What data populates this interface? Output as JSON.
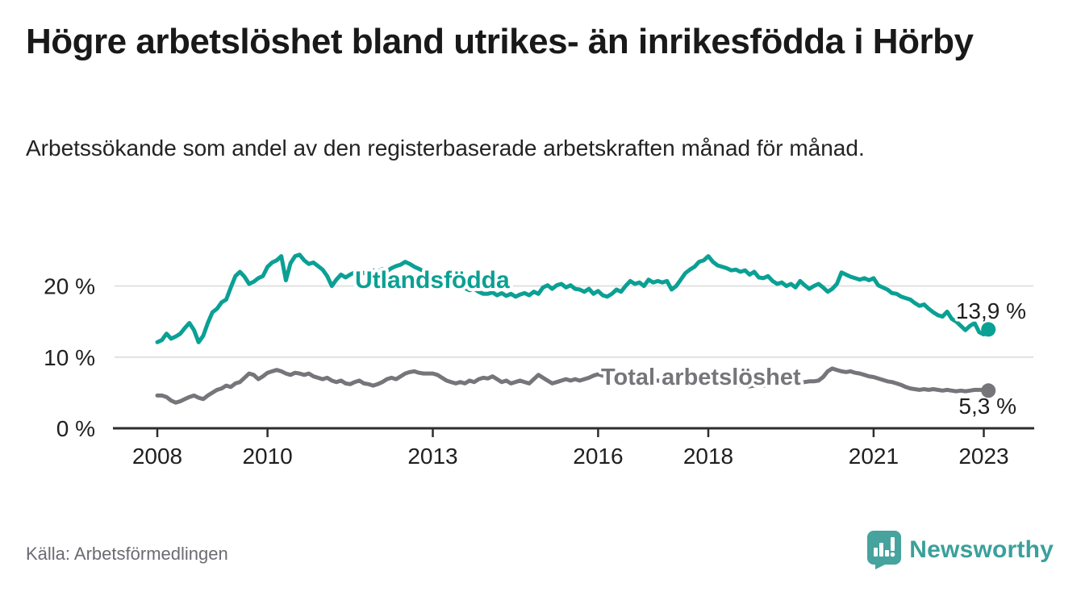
{
  "header": {
    "title": "Högre arbetslöshet bland utrikes- än inrikesfödda i Hörby",
    "subtitle": "Arbetssökande som andel av den registerbaserade arbetskraften månad för månad."
  },
  "footer": {
    "source": "Källa: Arbetsförmedlingen",
    "brand": "Newsworthy"
  },
  "colors": {
    "series1": "#0ba094",
    "series2": "#76757a",
    "grid": "#dcdcdc",
    "axis": "#2d2d2d",
    "text": "#1f1f1f",
    "value_label": "#1f1f1f",
    "brand": "#3ba09b"
  },
  "chart_data": {
    "type": "line",
    "unit": "%",
    "frequency": "monthly",
    "x_start": "2008-01",
    "x_end": "2023-02",
    "grid": "horizontal-only",
    "legend_position": "inline-labels",
    "x_tick_years": [
      "2008",
      "2010",
      "2013",
      "2016",
      "2018",
      "2021",
      "2023"
    ],
    "y_ticks": [
      {
        "value": 0,
        "label": "0 %"
      },
      {
        "value": 10,
        "label": "10 %"
      },
      {
        "value": 20,
        "label": "20 %"
      }
    ],
    "ylim": [
      0,
      26
    ],
    "series": [
      {
        "name": "Utlandsfödda",
        "end_label": "13,9 %",
        "end_value": 13.9,
        "values": [
          12.1,
          12.4,
          13.3,
          12.6,
          12.9,
          13.3,
          14.1,
          14.8,
          13.8,
          12.1,
          13.0,
          14.8,
          16.3,
          16.8,
          17.7,
          18.1,
          19.8,
          21.4,
          22.0,
          21.3,
          20.3,
          20.6,
          21.1,
          21.4,
          22.7,
          23.3,
          23.6,
          24.2,
          20.8,
          23.2,
          24.2,
          24.4,
          23.6,
          23.1,
          23.3,
          22.8,
          22.3,
          21.4,
          20.0,
          20.9,
          21.6,
          21.2,
          21.6,
          21.9,
          22.1,
          21.8,
          22.0,
          22.2,
          22.0,
          22.4,
          22.1,
          22.5,
          22.8,
          23.0,
          23.4,
          23.1,
          22.7,
          22.4,
          22.1,
          21.8,
          21.5,
          21.3,
          21.4,
          21.0,
          20.7,
          20.3,
          20.0,
          19.7,
          19.4,
          19.6,
          19.2,
          18.9,
          18.9,
          19.1,
          18.7,
          19.0,
          18.6,
          18.9,
          18.5,
          18.8,
          19.0,
          18.7,
          19.2,
          18.9,
          19.8,
          20.1,
          19.6,
          20.1,
          20.3,
          19.8,
          20.1,
          19.6,
          19.5,
          19.2,
          19.6,
          18.9,
          19.3,
          18.7,
          18.5,
          18.9,
          19.5,
          19.2,
          20.0,
          20.7,
          20.3,
          20.5,
          20.0,
          20.9,
          20.5,
          20.7,
          20.5,
          20.7,
          19.5,
          20.0,
          20.9,
          21.8,
          22.3,
          22.7,
          23.4,
          23.6,
          24.2,
          23.4,
          22.9,
          22.7,
          22.5,
          22.2,
          22.3,
          22.0,
          22.2,
          21.6,
          22.0,
          21.2,
          21.1,
          21.4,
          20.7,
          20.3,
          20.5,
          20.0,
          20.3,
          19.8,
          20.7,
          20.1,
          19.6,
          20.0,
          20.3,
          19.8,
          19.2,
          19.6,
          20.3,
          21.9,
          21.6,
          21.3,
          21.1,
          20.9,
          21.1,
          20.8,
          21.1,
          20.1,
          19.8,
          19.5,
          19.0,
          18.9,
          18.5,
          18.3,
          18.1,
          17.6,
          17.2,
          17.4,
          16.8,
          16.3,
          15.9,
          15.7,
          16.4,
          15.4,
          15.0,
          14.4,
          13.8,
          14.4,
          14.8,
          13.5,
          13.2,
          13.9
        ]
      },
      {
        "name": "Total arbetslöshet",
        "end_label": "5,3 %",
        "end_value": 5.3,
        "values": [
          4.6,
          4.6,
          4.4,
          3.9,
          3.6,
          3.8,
          4.1,
          4.4,
          4.6,
          4.3,
          4.1,
          4.6,
          5.0,
          5.4,
          5.6,
          6.0,
          5.8,
          6.3,
          6.5,
          7.1,
          7.7,
          7.5,
          6.9,
          7.3,
          7.8,
          8.0,
          8.2,
          8.0,
          7.7,
          7.5,
          7.8,
          7.7,
          7.5,
          7.7,
          7.3,
          7.1,
          6.9,
          7.1,
          6.7,
          6.5,
          6.7,
          6.3,
          6.2,
          6.5,
          6.7,
          6.3,
          6.2,
          6.0,
          6.2,
          6.5,
          6.9,
          7.1,
          6.9,
          7.3,
          7.7,
          7.9,
          8.0,
          7.8,
          7.7,
          7.7,
          7.7,
          7.5,
          7.1,
          6.7,
          6.5,
          6.3,
          6.5,
          6.3,
          6.7,
          6.5,
          6.9,
          7.1,
          7.0,
          7.3,
          6.9,
          6.5,
          6.7,
          6.3,
          6.5,
          6.7,
          6.5,
          6.3,
          6.9,
          7.5,
          7.1,
          6.7,
          6.3,
          6.5,
          6.7,
          6.9,
          6.7,
          6.9,
          6.7,
          6.9,
          7.1,
          7.4,
          7.6,
          7.4,
          7.2,
          7.0,
          6.9,
          6.8,
          6.9,
          7.0,
          6.9,
          6.8,
          6.7,
          6.8,
          6.8,
          6.7,
          6.6,
          6.5,
          6.4,
          6.5,
          6.6,
          6.5,
          6.4,
          6.3,
          6.4,
          6.5,
          6.4,
          6.3,
          6.2,
          6.1,
          6.0,
          6.1,
          6.2,
          6.1,
          6.0,
          5.9,
          6.0,
          6.1,
          6.0,
          6.1,
          6.2,
          6.1,
          6.2,
          6.3,
          6.2,
          6.3,
          6.4,
          6.5,
          6.6,
          6.6,
          6.7,
          7.2,
          8.0,
          8.4,
          8.2,
          8.0,
          7.9,
          8.0,
          7.8,
          7.7,
          7.5,
          7.3,
          7.2,
          7.0,
          6.8,
          6.6,
          6.5,
          6.3,
          6.1,
          5.8,
          5.6,
          5.5,
          5.4,
          5.5,
          5.4,
          5.5,
          5.4,
          5.3,
          5.4,
          5.3,
          5.2,
          5.3,
          5.2,
          5.3,
          5.4,
          5.4,
          5.4,
          5.3
        ]
      }
    ]
  }
}
